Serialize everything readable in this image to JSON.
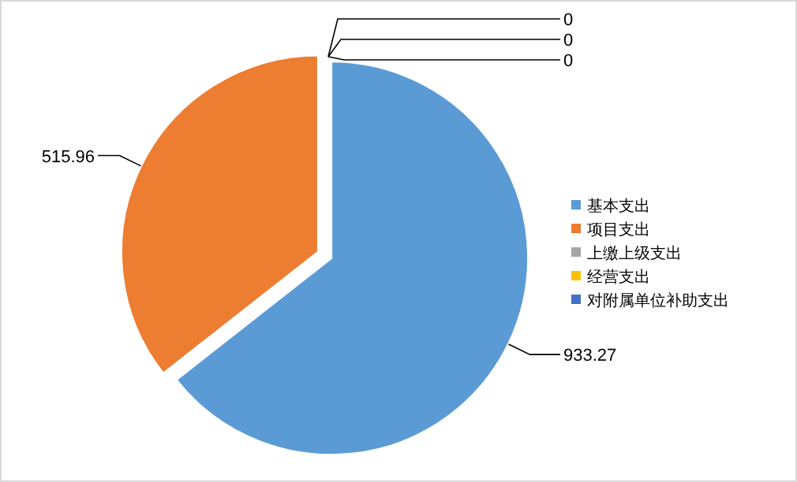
{
  "chart_data": {
    "type": "pie",
    "categories": [
      "基本支出",
      "项目支出",
      "上缴上级支出",
      "经营支出",
      "对附属单位补助支出"
    ],
    "values": [
      933.27,
      515.96,
      0,
      0,
      0
    ],
    "colors": [
      "#5b9bd5",
      "#ed7d31",
      "#a5a5a5",
      "#ffc000",
      "#4472c4"
    ],
    "value_labels": [
      "933.27",
      "515.96",
      "0",
      "0",
      "0"
    ],
    "legend": "right"
  }
}
